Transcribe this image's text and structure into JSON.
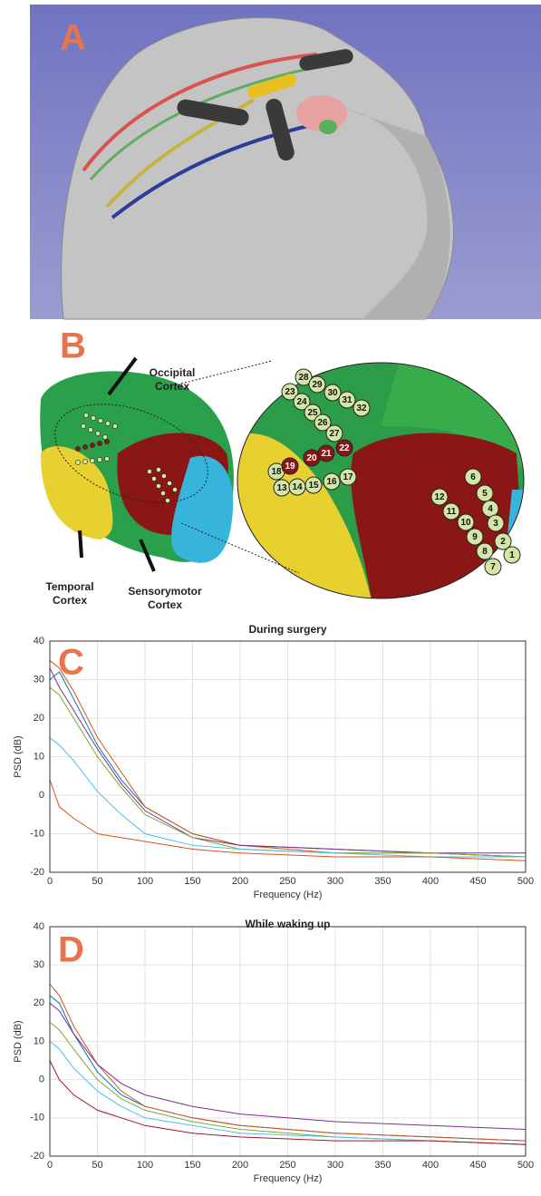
{
  "panels": {
    "a": "A",
    "b": "B",
    "c": "C",
    "d": "D"
  },
  "brain": {
    "occipital": [
      "Occipital",
      "Cortex"
    ],
    "temporal": [
      "Temporal",
      "Cortex"
    ],
    "sensorimotor": [
      "Sensorymotor",
      "Cortex"
    ],
    "electrodes_green": [
      "28",
      "29",
      "30",
      "31",
      "32",
      "23",
      "24",
      "25",
      "26",
      "27",
      "18",
      "13",
      "14",
      "15",
      "16",
      "17",
      "6",
      "5",
      "4",
      "3",
      "2",
      "1",
      "7",
      "8",
      "9",
      "10",
      "11",
      "12"
    ],
    "electrodes_red": [
      "22",
      "19",
      "20",
      "21"
    ]
  },
  "chart_data": [
    {
      "type": "line",
      "title": "During surgery",
      "xlabel": "Frequency (Hz)",
      "ylabel": "PSD (dB)",
      "grid": true,
      "x": [
        0,
        10,
        25,
        50,
        75,
        100,
        150,
        200,
        300,
        400,
        500
      ],
      "xlim": [
        0,
        500
      ],
      "xticks": [
        0,
        50,
        100,
        150,
        200,
        250,
        300,
        350,
        400,
        450,
        500
      ],
      "ylim": [
        -20,
        40
      ],
      "yticks": [
        -20,
        -10,
        0,
        10,
        20,
        30,
        40
      ],
      "series": [
        {
          "color": "#0072bd",
          "values": [
            30,
            32,
            25,
            13,
            4,
            -3,
            -10,
            -13,
            -14,
            -15,
            -16
          ]
        },
        {
          "color": "#d95319",
          "values": [
            35,
            33,
            27,
            15,
            6,
            -3,
            -10,
            -13,
            -15,
            -15,
            -16
          ]
        },
        {
          "color": "#7e2f8e",
          "values": [
            33,
            28,
            22,
            12,
            3,
            -4,
            -11,
            -13,
            -14,
            -15,
            -15
          ]
        },
        {
          "color": "#77ac30",
          "values": [
            28,
            26,
            20,
            10,
            2,
            -5,
            -11,
            -14,
            -15,
            -15,
            -16
          ]
        },
        {
          "color": "#4dbeee",
          "values": [
            15,
            13,
            9,
            1,
            -5,
            -10,
            -13,
            -14,
            -15,
            -16,
            -16
          ]
        },
        {
          "color": "#d95319",
          "values": [
            4,
            -3,
            -6,
            -10,
            -11,
            -12,
            -14,
            -15,
            -16,
            -16,
            -17
          ]
        }
      ]
    },
    {
      "type": "line",
      "title": "While waking up",
      "xlabel": "Frequency (Hz)",
      "ylabel": "PSD (dB)",
      "grid": true,
      "x": [
        0,
        10,
        25,
        50,
        75,
        100,
        150,
        200,
        300,
        400,
        500
      ],
      "xlim": [
        0,
        500
      ],
      "xticks": [
        0,
        50,
        100,
        150,
        200,
        250,
        300,
        350,
        400,
        450,
        500
      ],
      "ylim": [
        -20,
        40
      ],
      "yticks": [
        -20,
        -10,
        0,
        10,
        20,
        30,
        40
      ],
      "series": [
        {
          "color": "#0072bd",
          "values": [
            22,
            20,
            12,
            2,
            -4,
            -7,
            -10,
            -12,
            -14,
            -15,
            -16
          ]
        },
        {
          "color": "#d95319",
          "values": [
            25,
            22,
            14,
            4,
            -3,
            -7,
            -10,
            -12,
            -14,
            -15,
            -16
          ]
        },
        {
          "color": "#7e2f8e",
          "values": [
            20,
            18,
            12,
            4,
            -1,
            -4,
            -7,
            -9,
            -11,
            -12,
            -13
          ]
        },
        {
          "color": "#77ac30",
          "values": [
            15,
            13,
            8,
            0,
            -5,
            -8,
            -11,
            -13,
            -15,
            -16,
            -17
          ]
        },
        {
          "color": "#4dbeee",
          "values": [
            10,
            8,
            3,
            -3,
            -7,
            -10,
            -12,
            -14,
            -15,
            -16,
            -17
          ]
        },
        {
          "color": "#a2142f",
          "values": [
            5,
            0,
            -4,
            -8,
            -10,
            -12,
            -14,
            -15,
            -16,
            -16,
            -17
          ]
        }
      ]
    }
  ]
}
